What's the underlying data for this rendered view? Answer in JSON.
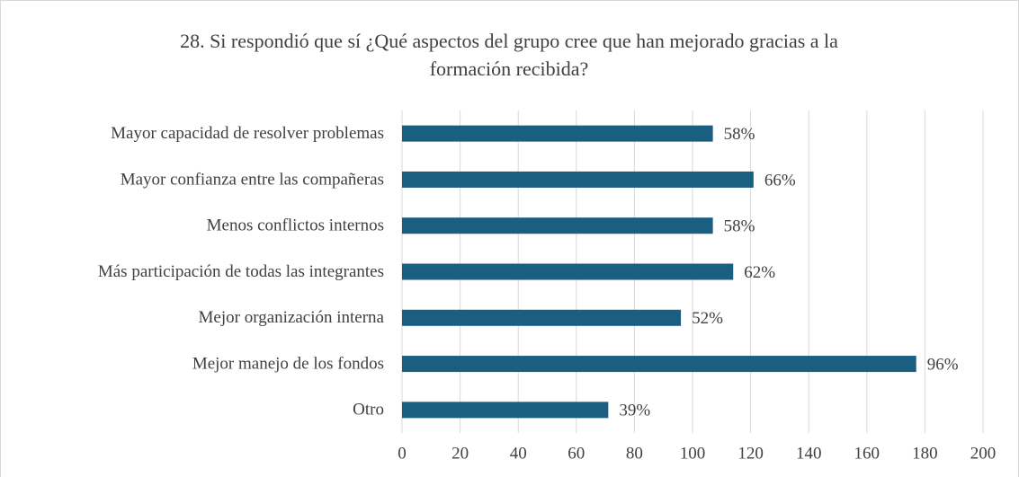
{
  "chart_data": {
    "type": "bar",
    "orientation": "horizontal",
    "title": "28. Si respondió que sí ¿Qué aspectos del grupo cree que han mejorado gracias a la formación recibida?",
    "categories": [
      "Mayor capacidad de resolver problemas",
      "Mayor confianza entre las compañeras",
      "Menos conflictos internos",
      "Más participación de todas las integrantes",
      "Mejor organización interna",
      "Mejor manejo de los fondos",
      "Otro"
    ],
    "values": [
      107,
      121,
      107,
      114,
      96,
      177,
      71
    ],
    "value_labels": [
      "58%",
      "66%",
      "58%",
      "62%",
      "52%",
      "96%",
      "39%"
    ],
    "color": "#1a5e80",
    "xlim": [
      0,
      200
    ],
    "xticks": [
      0,
      20,
      40,
      60,
      80,
      100,
      120,
      140,
      160,
      180,
      200
    ],
    "grid": true
  }
}
